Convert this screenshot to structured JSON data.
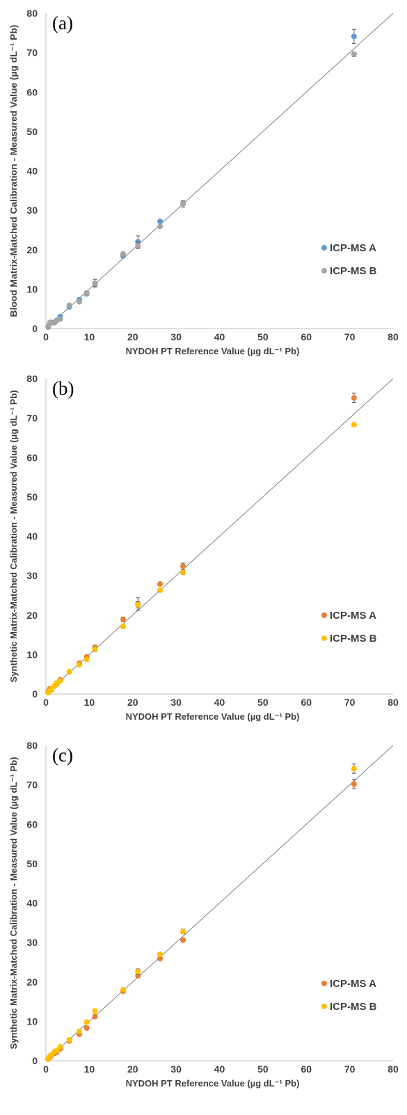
{
  "chart_data": [
    {
      "type": "scatter",
      "panel_label": "(a)",
      "xlabel": "NYDOH PT Reference Value (µg dL⁻¹ Pb)",
      "ylabel": "Blood Matrix-Matched Calibration - Measured Value (µg dL⁻¹ Pb)",
      "xlim": [
        0,
        80
      ],
      "ylim": [
        0,
        80
      ],
      "x_ticks": [
        "0",
        "10",
        "20",
        "30",
        "40",
        "50",
        "60",
        "70",
        "80"
      ],
      "y_ticks": [
        "0",
        "10",
        "20",
        "30",
        "40",
        "50",
        "60",
        "70",
        "80"
      ],
      "grid": false,
      "legend_position": "right",
      "reference_line": "y = x",
      "series": [
        {
          "name": "ICP-MS A",
          "color": "#5b9bd5",
          "points": [
            {
              "x": 0.5,
              "y": 0.5,
              "err": 0.2
            },
            {
              "x": 0.9,
              "y": 1.2,
              "err": 0.2
            },
            {
              "x": 1.2,
              "y": 1.6,
              "err": 0.2
            },
            {
              "x": 2.0,
              "y": 1.5,
              "err": 0.2
            },
            {
              "x": 2.5,
              "y": 2.0,
              "err": 0.2
            },
            {
              "x": 3.3,
              "y": 3.0,
              "err": 0.3
            },
            {
              "x": 5.4,
              "y": 5.5,
              "err": 0.4
            },
            {
              "x": 7.7,
              "y": 7.3,
              "err": 0.4
            },
            {
              "x": 9.4,
              "y": 8.8,
              "err": 0.5
            },
            {
              "x": 11.3,
              "y": 11.2,
              "err": 0.6
            },
            {
              "x": 17.8,
              "y": 18.4,
              "err": 0.5
            },
            {
              "x": 21.2,
              "y": 22.0,
              "err": 1.5
            },
            {
              "x": 26.3,
              "y": 27.2,
              "err": 0.4
            },
            {
              "x": 31.6,
              "y": 31.7,
              "err": 0.5
            },
            {
              "x": 71.0,
              "y": 74.1,
              "err": 1.8
            }
          ]
        },
        {
          "name": "ICP-MS B",
          "color": "#a5a5a5",
          "points": [
            {
              "x": 0.5,
              "y": 0.3,
              "err": 0.2
            },
            {
              "x": 0.9,
              "y": 1.5,
              "err": 0.2
            },
            {
              "x": 1.2,
              "y": 1.4,
              "err": 0.2
            },
            {
              "x": 2.0,
              "y": 1.6,
              "err": 0.2
            },
            {
              "x": 2.5,
              "y": 2.1,
              "err": 0.2
            },
            {
              "x": 3.3,
              "y": 2.4,
              "err": 0.3
            },
            {
              "x": 5.4,
              "y": 5.9,
              "err": 0.4
            },
            {
              "x": 7.7,
              "y": 6.8,
              "err": 0.4
            },
            {
              "x": 9.4,
              "y": 9.0,
              "err": 0.5
            },
            {
              "x": 11.3,
              "y": 11.5,
              "err": 1.0
            },
            {
              "x": 17.8,
              "y": 18.9,
              "err": 0.5
            },
            {
              "x": 21.2,
              "y": 21.1,
              "err": 0.8
            },
            {
              "x": 26.3,
              "y": 25.9,
              "err": 0.4
            },
            {
              "x": 31.6,
              "y": 31.6,
              "err": 0.8
            },
            {
              "x": 71.0,
              "y": 69.6,
              "err": 0.6
            }
          ]
        }
      ]
    },
    {
      "type": "scatter",
      "panel_label": "(b)",
      "xlabel": "NYDOH PT Reference Value (µg dL⁻¹ Pb)",
      "ylabel": "Synthetic Matrix-Matched Calibration - Measured Value (µg dL⁻¹ Pb)",
      "xlim": [
        0,
        80
      ],
      "ylim": [
        0,
        80
      ],
      "x_ticks": [
        "0",
        "10",
        "20",
        "30",
        "40",
        "50",
        "60",
        "70",
        "80"
      ],
      "y_ticks": [
        "0",
        "10",
        "20",
        "30",
        "40",
        "50",
        "60",
        "70",
        "80"
      ],
      "grid": false,
      "legend_position": "right",
      "reference_line": "y = x",
      "series": [
        {
          "name": "ICP-MS A",
          "color": "#ed7d31",
          "points": [
            {
              "x": 0.5,
              "y": 0.6,
              "err": 0.2
            },
            {
              "x": 0.9,
              "y": 1.3,
              "err": 0.3
            },
            {
              "x": 1.2,
              "y": 1.0,
              "err": 0.2
            },
            {
              "x": 2.0,
              "y": 2.0,
              "err": 0.2
            },
            {
              "x": 2.5,
              "y": 2.6,
              "err": 0.2
            },
            {
              "x": 3.3,
              "y": 3.6,
              "err": 0.3
            },
            {
              "x": 5.4,
              "y": 5.6,
              "err": 0.3
            },
            {
              "x": 7.7,
              "y": 7.8,
              "err": 0.4
            },
            {
              "x": 9.4,
              "y": 9.4,
              "err": 0.5
            },
            {
              "x": 11.3,
              "y": 11.8,
              "err": 0.6
            },
            {
              "x": 17.8,
              "y": 18.9,
              "err": 0.6
            },
            {
              "x": 21.2,
              "y": 22.8,
              "err": 1.6
            },
            {
              "x": 26.3,
              "y": 27.9,
              "err": 0.4
            },
            {
              "x": 31.6,
              "y": 32.4,
              "err": 0.8
            },
            {
              "x": 71.0,
              "y": 75.1,
              "err": 1.2
            }
          ]
        },
        {
          "name": "ICP-MS B",
          "color": "#ffc000",
          "points": [
            {
              "x": 0.5,
              "y": 0.3,
              "err": 0.2
            },
            {
              "x": 0.9,
              "y": 0.8,
              "err": 0.2
            },
            {
              "x": 1.2,
              "y": 1.2,
              "err": 0.2
            },
            {
              "x": 2.0,
              "y": 2.1,
              "err": 0.2
            },
            {
              "x": 2.5,
              "y": 2.8,
              "err": 0.2
            },
            {
              "x": 3.3,
              "y": 3.3,
              "err": 0.3
            },
            {
              "x": 5.4,
              "y": 5.7,
              "err": 0.3
            },
            {
              "x": 7.7,
              "y": 7.4,
              "err": 0.4
            },
            {
              "x": 9.4,
              "y": 8.8,
              "err": 0.5
            },
            {
              "x": 11.3,
              "y": 11.3,
              "err": 0.6
            },
            {
              "x": 17.8,
              "y": 17.1,
              "err": 0.5
            },
            {
              "x": 21.2,
              "y": 22.6,
              "err": 0.8
            },
            {
              "x": 26.3,
              "y": 26.3,
              "err": 0.4
            },
            {
              "x": 31.6,
              "y": 30.8,
              "err": 0.5
            },
            {
              "x": 71.0,
              "y": 68.3,
              "err": 0.5
            }
          ]
        }
      ]
    },
    {
      "type": "scatter",
      "panel_label": "(c)",
      "xlabel": "NYDOH PT Reference Value (µg dL⁻¹ Pb)",
      "ylabel": "Synthetic Matrix-Matched Calibration - Measured Value (µg dL⁻¹ Pb)",
      "xlim": [
        0,
        80
      ],
      "ylim": [
        0,
        80
      ],
      "x_ticks": [
        "0",
        "10",
        "20",
        "30",
        "40",
        "50",
        "60",
        "70",
        "80"
      ],
      "y_ticks": [
        "0",
        "10",
        "20",
        "30",
        "40",
        "50",
        "60",
        "70",
        "80"
      ],
      "grid": false,
      "legend_position": "right",
      "reference_line": "y = x",
      "series": [
        {
          "name": "ICP-MS A",
          "color": "#ed7d31",
          "points": [
            {
              "x": 0.5,
              "y": 0.4,
              "err": 0.2
            },
            {
              "x": 0.9,
              "y": 0.8,
              "err": 0.2
            },
            {
              "x": 1.2,
              "y": 1.2,
              "err": 0.2
            },
            {
              "x": 2.0,
              "y": 1.9,
              "err": 0.2
            },
            {
              "x": 2.5,
              "y": 2.2,
              "err": 0.2
            },
            {
              "x": 3.3,
              "y": 3.0,
              "err": 0.3
            },
            {
              "x": 5.4,
              "y": 5.0,
              "err": 0.3
            },
            {
              "x": 7.7,
              "y": 6.7,
              "err": 0.4
            },
            {
              "x": 9.4,
              "y": 8.3,
              "err": 0.4
            },
            {
              "x": 11.3,
              "y": 11.2,
              "err": 0.5
            },
            {
              "x": 17.8,
              "y": 17.6,
              "err": 0.4
            },
            {
              "x": 21.2,
              "y": 21.6,
              "err": 0.5
            },
            {
              "x": 26.3,
              "y": 25.9,
              "err": 0.4
            },
            {
              "x": 31.6,
              "y": 30.6,
              "err": 0.5
            },
            {
              "x": 71.0,
              "y": 70.2,
              "err": 1.2
            }
          ]
        },
        {
          "name": "ICP-MS B",
          "color": "#ffc000",
          "points": [
            {
              "x": 0.5,
              "y": 0.5,
              "err": 0.2
            },
            {
              "x": 0.9,
              "y": 1.1,
              "err": 0.2
            },
            {
              "x": 1.2,
              "y": 1.5,
              "err": 0.2
            },
            {
              "x": 2.0,
              "y": 2.3,
              "err": 0.2
            },
            {
              "x": 2.5,
              "y": 2.6,
              "err": 0.2
            },
            {
              "x": 3.3,
              "y": 3.5,
              "err": 0.3
            },
            {
              "x": 5.4,
              "y": 5.3,
              "err": 0.3
            },
            {
              "x": 7.7,
              "y": 7.4,
              "err": 0.4
            },
            {
              "x": 9.4,
              "y": 9.8,
              "err": 0.4
            },
            {
              "x": 11.3,
              "y": 12.6,
              "err": 0.5
            },
            {
              "x": 17.8,
              "y": 18.0,
              "err": 0.5
            },
            {
              "x": 21.2,
              "y": 22.6,
              "err": 0.7
            },
            {
              "x": 26.3,
              "y": 27.0,
              "err": 0.4
            },
            {
              "x": 31.6,
              "y": 32.8,
              "err": 0.6
            },
            {
              "x": 71.0,
              "y": 74.1,
              "err": 1.2
            }
          ]
        }
      ]
    }
  ]
}
